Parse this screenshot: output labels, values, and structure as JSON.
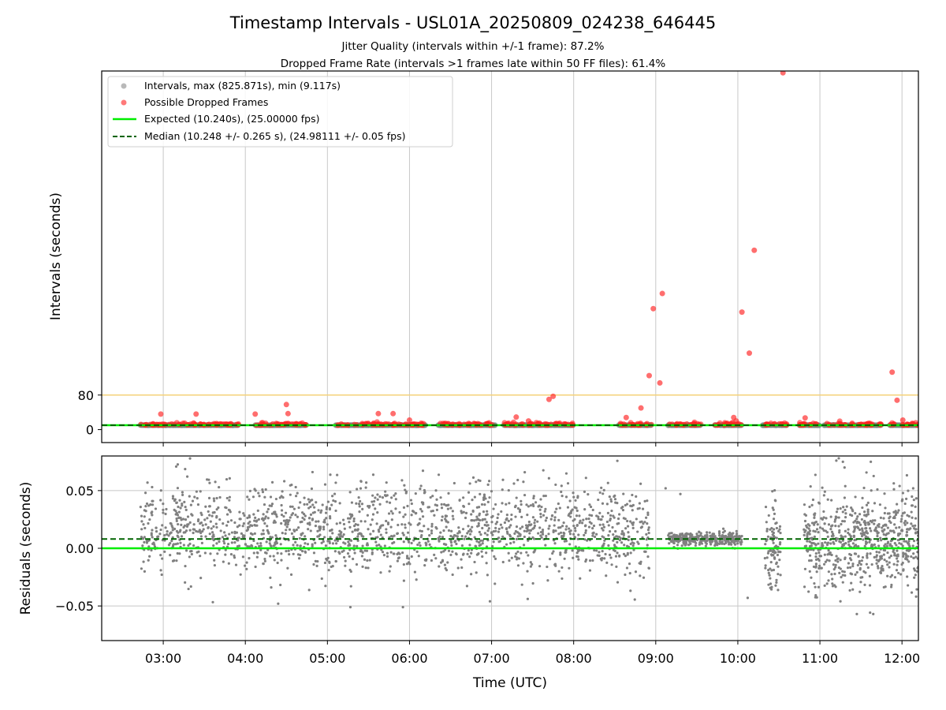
{
  "chart_data": {
    "title": "Timestamp Intervals - USL01A_20250809_024238_646445",
    "subtitles": [
      "Jitter Quality (intervals within +/-1 frame): 87.2%",
      "Dropped Frame Rate (intervals >1 frames late within 50 FF files): 61.4%"
    ],
    "xlabel": "Time (UTC)",
    "x_ticks": [
      "03:00",
      "04:00",
      "05:00",
      "06:00",
      "07:00",
      "08:00",
      "09:00",
      "10:00",
      "11:00",
      "12:00"
    ],
    "xlim_hours": [
      2.25,
      12.2
    ],
    "colors": {
      "intervals": "#808080",
      "dropped": "#ff2020",
      "expected": "#00ee00",
      "median": "#006400",
      "threshold": "#f5d27a",
      "grid": "#c8c8c8"
    },
    "top": {
      "type": "scatter",
      "ylabel": "Intervals (seconds)",
      "ylim": [
        -30,
        830
      ],
      "y_ticks": [
        0,
        80
      ],
      "threshold_line": 80,
      "expected": 10.24,
      "median": 10.248,
      "legend_position": "upper-left",
      "legend": [
        {
          "label": "Intervals, max (825.871s), min (9.117s)",
          "kind": "gray-dot"
        },
        {
          "label": "Possible Dropped Frames",
          "kind": "red-dot"
        },
        {
          "label": "Expected (10.240s), (25.00000 fps)",
          "kind": "green-line"
        },
        {
          "label": "Median (10.248 +/- 0.265 s), (24.98111 +/- 0.05 fps)",
          "kind": "dashed-dark-green-line"
        }
      ],
      "observation_segments_hours": [
        [
          2.72,
          3.92
        ],
        [
          4.12,
          4.75
        ],
        [
          5.1,
          6.2
        ],
        [
          6.35,
          7.05
        ],
        [
          7.15,
          8.0
        ],
        [
          8.55,
          8.95
        ],
        [
          9.15,
          9.55
        ],
        [
          9.72,
          10.05
        ],
        [
          10.3,
          10.6
        ],
        [
          10.75,
          11.0
        ],
        [
          11.05,
          11.75
        ],
        [
          11.85,
          12.2
        ]
      ],
      "dropped_outliers": [
        {
          "t": 2.97,
          "v": 36
        },
        {
          "t": 3.4,
          "v": 36
        },
        {
          "t": 4.12,
          "v": 36
        },
        {
          "t": 4.5,
          "v": 58
        },
        {
          "t": 4.52,
          "v": 37
        },
        {
          "t": 5.62,
          "v": 37
        },
        {
          "t": 5.8,
          "v": 37
        },
        {
          "t": 7.45,
          "v": 20
        },
        {
          "t": 7.7,
          "v": 70
        },
        {
          "t": 7.75,
          "v": 77
        },
        {
          "t": 8.82,
          "v": 50
        },
        {
          "t": 8.92,
          "v": 125
        },
        {
          "t": 8.97,
          "v": 280
        },
        {
          "t": 9.05,
          "v": 108
        },
        {
          "t": 9.08,
          "v": 315
        },
        {
          "t": 10.05,
          "v": 272
        },
        {
          "t": 10.14,
          "v": 177
        },
        {
          "t": 10.2,
          "v": 415
        },
        {
          "t": 10.55,
          "v": 825.871
        },
        {
          "t": 10.82,
          "v": 27
        },
        {
          "t": 11.88,
          "v": 133
        },
        {
          "t": 11.94,
          "v": 68
        },
        {
          "t": 12.01,
          "v": 22
        },
        {
          "t": 9.95,
          "v": 28
        },
        {
          "t": 9.98,
          "v": 20
        },
        {
          "t": 8.64,
          "v": 28
        },
        {
          "t": 6.0,
          "v": 22
        },
        {
          "t": 7.3,
          "v": 29
        }
      ]
    },
    "bottom": {
      "type": "scatter",
      "ylabel": "Residuals (seconds)",
      "ylim": [
        -0.08,
        0.08
      ],
      "y_ticks": [
        {
          "value": 0.05,
          "label": "0.05"
        },
        {
          "value": 0.0,
          "label": "0.00"
        },
        {
          "value": -0.05,
          "label": "−0.05"
        }
      ],
      "expected_residual": 0.0,
      "median_residual": 0.008,
      "scatter_segments": [
        {
          "t0": 2.72,
          "t1": 8.92,
          "center": 0.01,
          "spread": 0.028,
          "count": 1700
        },
        {
          "t0": 9.15,
          "t1": 10.05,
          "center": 0.008,
          "spread": 0.005,
          "count": 320
        },
        {
          "t0": 10.33,
          "t1": 10.52,
          "center": -0.005,
          "spread": 0.025,
          "count": 90
        },
        {
          "t0": 10.8,
          "t1": 12.2,
          "center": 0.0,
          "spread": 0.03,
          "count": 650
        }
      ],
      "outliers": [
        {
          "t": 9.12,
          "v": 0.052
        },
        {
          "t": 9.3,
          "v": 0.047
        },
        {
          "t": 8.15,
          "v": 0.061
        },
        {
          "t": 11.23,
          "v": 0.078
        },
        {
          "t": 11.3,
          "v": 0.07
        },
        {
          "t": 11.28,
          "v": 0.075
        },
        {
          "t": 11.62,
          "v": 0.075
        },
        {
          "t": 11.2,
          "v": 0.076
        },
        {
          "t": 10.12,
          "v": -0.043
        },
        {
          "t": 11.45,
          "v": -0.057
        },
        {
          "t": 11.65,
          "v": -0.057
        },
        {
          "t": 4.4,
          "v": -0.048
        },
        {
          "t": 5.28,
          "v": -0.051
        },
        {
          "t": 5.92,
          "v": -0.051
        },
        {
          "t": 11.25,
          "v": -0.046
        }
      ]
    }
  }
}
